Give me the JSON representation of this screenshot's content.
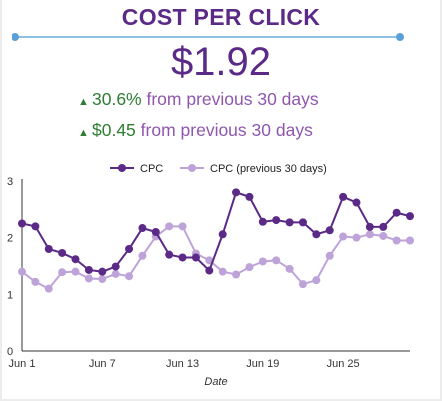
{
  "card": {
    "title": "COST PER CLICK",
    "metric": "$1.92",
    "deltas": [
      {
        "arrow": "▲",
        "value": "30.6%",
        "text": " from previous 30 days"
      },
      {
        "arrow": "▲",
        "value": "$0.45",
        "text": " from previous 30 days"
      }
    ]
  },
  "colors": {
    "primary": "#5b2a86",
    "secondary": "#bea3d9",
    "positive": "#2e7d32",
    "divider": "#8ec0e4"
  },
  "chart_data": {
    "type": "line",
    "x": [
      "Jun 1",
      "Jun 2",
      "Jun 3",
      "Jun 4",
      "Jun 5",
      "Jun 6",
      "Jun 7",
      "Jun 8",
      "Jun 9",
      "Jun 10",
      "Jun 11",
      "Jun 12",
      "Jun 13",
      "Jun 14",
      "Jun 15",
      "Jun 16",
      "Jun 17",
      "Jun 18",
      "Jun 19",
      "Jun 20",
      "Jun 21",
      "Jun 22",
      "Jun 23",
      "Jun 24",
      "Jun 25",
      "Jun 26",
      "Jun 27",
      "Jun 28",
      "Jun 29",
      "Jun 30"
    ],
    "x_ticks": [
      "Jun 1",
      "Jun 7",
      "Jun 13",
      "Jun 19",
      "Jun 25"
    ],
    "xlabel": "Date",
    "ylabel": "",
    "ylim": [
      0,
      3
    ],
    "y_ticks": [
      0,
      1,
      2,
      3
    ],
    "grid": false,
    "legend_position": "top",
    "series": [
      {
        "name": "CPC",
        "color": "#5b2a86",
        "values": [
          2.25,
          2.2,
          1.8,
          1.73,
          1.62,
          1.43,
          1.4,
          1.49,
          1.8,
          2.17,
          2.1,
          1.7,
          1.65,
          1.65,
          1.42,
          2.06,
          2.8,
          2.72,
          2.28,
          2.31,
          2.27,
          2.27,
          2.06,
          2.13,
          2.72,
          2.62,
          2.19,
          2.19,
          2.44,
          2.38
        ]
      },
      {
        "name": "CPC (previous 30 days)",
        "color": "#bea3d9",
        "values": [
          1.4,
          1.22,
          1.1,
          1.39,
          1.4,
          1.28,
          1.27,
          1.36,
          1.32,
          1.68,
          2.02,
          2.2,
          2.2,
          1.72,
          1.6,
          1.4,
          1.35,
          1.48,
          1.58,
          1.6,
          1.45,
          1.18,
          1.25,
          1.68,
          2.02,
          2.0,
          2.06,
          2.03,
          1.95,
          1.95
        ]
      }
    ]
  }
}
